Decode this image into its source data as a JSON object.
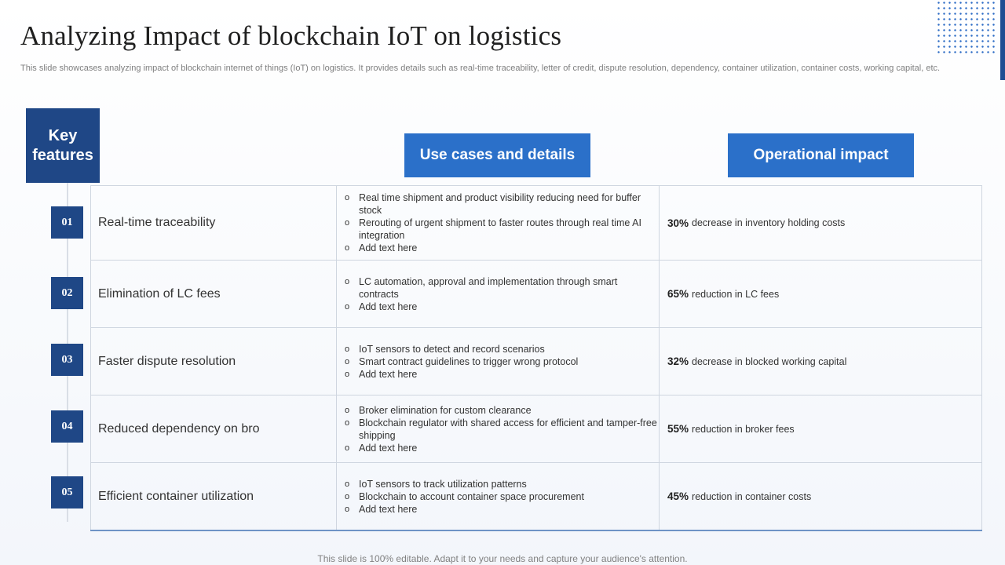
{
  "title": "Analyzing Impact of blockchain IoT on logistics",
  "subtitle": "This slide showcases analyzing impact of blockchain internet of things (IoT) on logistics. It provides details such as real-time traceability, letter of credit, dispute resolution, dependency, container utilization, container costs, working capital, etc.",
  "headers": {
    "key_features_line1": "Key",
    "key_features_line2": "features",
    "use_cases": "Use cases and details",
    "impact": "Operational impact"
  },
  "rows": [
    {
      "num": "01",
      "feature": "Real-time traceability",
      "uses": [
        "Real time shipment and product visibility reducing need for buffer stock",
        "Rerouting of urgent shipment to faster routes through real time AI integration",
        "Add text here"
      ],
      "impact_value": "30%",
      "impact_text": "decrease in inventory  holding costs"
    },
    {
      "num": "02",
      "feature": "Elimination of LC fees",
      "uses": [
        "LC automation, approval  and implementation through smart contracts",
        "Add text here"
      ],
      "impact_value": "65%",
      "impact_text": "reduction in LC fees"
    },
    {
      "num": "03",
      "feature": "Faster dispute resolution",
      "uses": [
        "IoT sensors to detect and record scenarios",
        "Smart contract guidelines to trigger wrong protocol",
        "Add text here"
      ],
      "impact_value": "32%",
      "impact_text": "decrease in blocked working capital"
    },
    {
      "num": "04",
      "feature": "Reduced dependency on bro",
      "uses": [
        "Broker elimination for custom clearance",
        "Blockchain regulator with shared access for efficient and tamper-free shipping",
        "Add text here"
      ],
      "impact_value": "55%",
      "impact_text": "reduction in broker fees"
    },
    {
      "num": "05",
      "feature": "Efficient container utilization",
      "uses": [
        "IoT sensors to track utilization patterns",
        "Blockchain to account container space procurement",
        "Add text here"
      ],
      "impact_value": "45%",
      "impact_text": "reduction in container costs"
    }
  ],
  "footer": "This slide is 100% editable. Adapt it to your needs and capture your audience's attention.",
  "colors": {
    "navy": "#1f4786",
    "blue": "#2b70c9"
  }
}
